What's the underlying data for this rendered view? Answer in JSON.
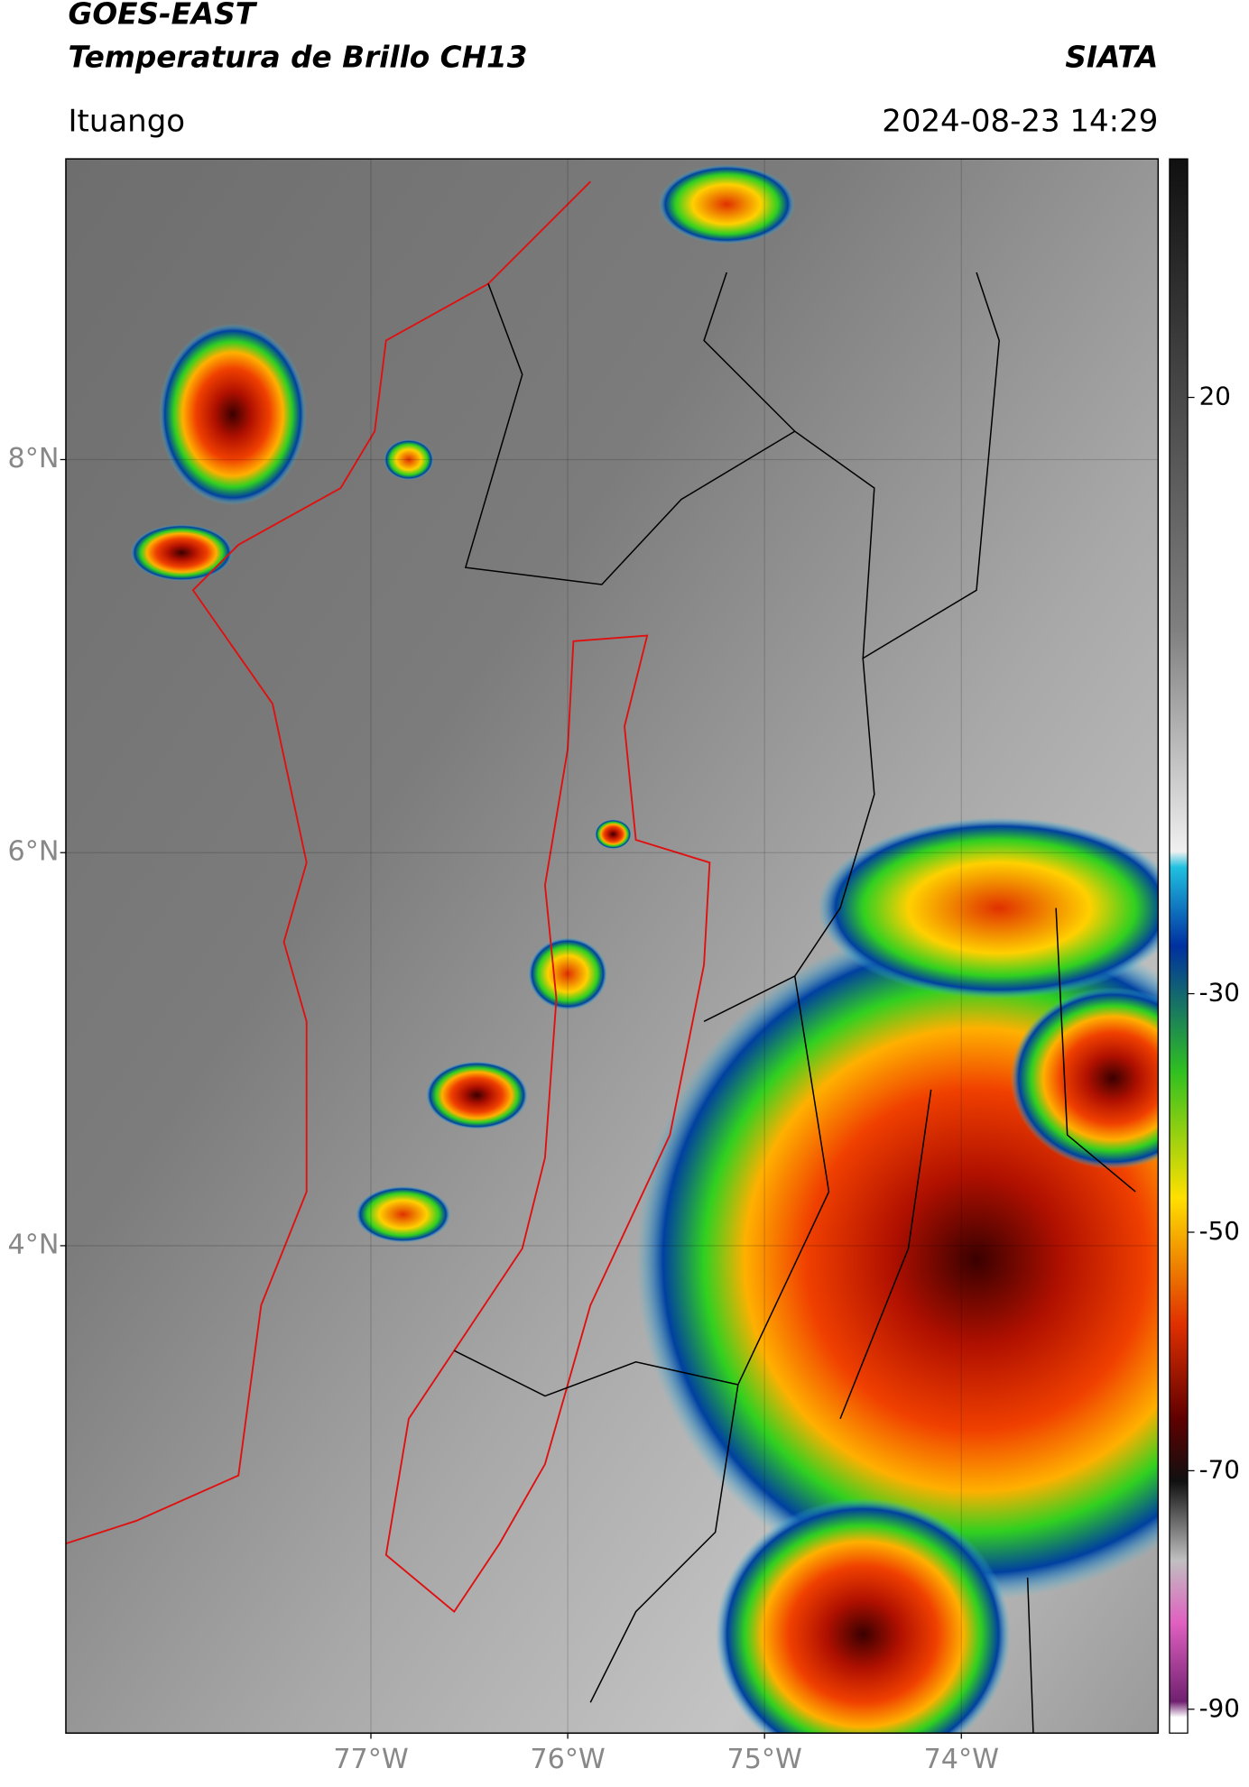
{
  "chart_data": {
    "type": "map",
    "title": "GOES-EAST",
    "subtitle": "Temperatura de Brillo CH13",
    "source": "SIATA",
    "location": "Ituango",
    "datetime": "2024-08-23 14:29",
    "xlim": [
      -78.55,
      -73.0
    ],
    "ylim": [
      1.52,
      9.53
    ],
    "xticks": [
      {
        "value": -77,
        "label": "77°W"
      },
      {
        "value": -76,
        "label": "76°W"
      },
      {
        "value": -75,
        "label": "75°W"
      },
      {
        "value": -74,
        "label": "74°W"
      }
    ],
    "yticks": [
      {
        "value": 8,
        "label": "8°N"
      },
      {
        "value": 6,
        "label": "6°N"
      },
      {
        "value": 4,
        "label": "4°N"
      }
    ],
    "grid": true,
    "colorbar": {
      "lim": [
        -92,
        40
      ],
      "ticks": [
        20,
        -30,
        -50,
        -70,
        -90
      ]
    }
  }
}
